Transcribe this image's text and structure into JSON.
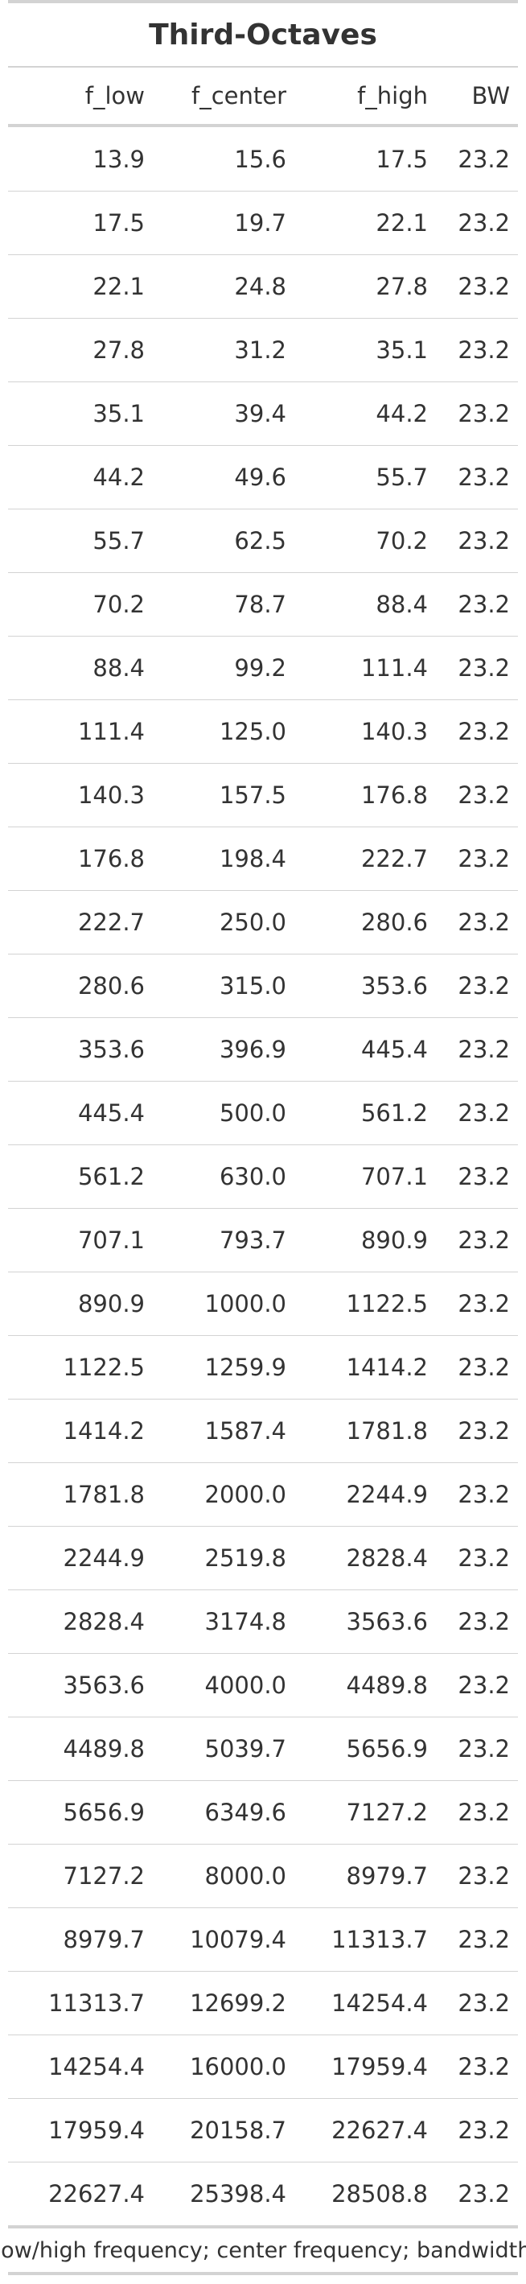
{
  "table": {
    "title": "Third-Octaves",
    "columns": [
      "f_low",
      "f_center",
      "f_high",
      "BW"
    ],
    "rows": [
      [
        "13.9",
        "15.6",
        "17.5",
        "23.2"
      ],
      [
        "17.5",
        "19.7",
        "22.1",
        "23.2"
      ],
      [
        "22.1",
        "24.8",
        "27.8",
        "23.2"
      ],
      [
        "27.8",
        "31.2",
        "35.1",
        "23.2"
      ],
      [
        "35.1",
        "39.4",
        "44.2",
        "23.2"
      ],
      [
        "44.2",
        "49.6",
        "55.7",
        "23.2"
      ],
      [
        "55.7",
        "62.5",
        "70.2",
        "23.2"
      ],
      [
        "70.2",
        "78.7",
        "88.4",
        "23.2"
      ],
      [
        "88.4",
        "99.2",
        "111.4",
        "23.2"
      ],
      [
        "111.4",
        "125.0",
        "140.3",
        "23.2"
      ],
      [
        "140.3",
        "157.5",
        "176.8",
        "23.2"
      ],
      [
        "176.8",
        "198.4",
        "222.7",
        "23.2"
      ],
      [
        "222.7",
        "250.0",
        "280.6",
        "23.2"
      ],
      [
        "280.6",
        "315.0",
        "353.6",
        "23.2"
      ],
      [
        "353.6",
        "396.9",
        "445.4",
        "23.2"
      ],
      [
        "445.4",
        "500.0",
        "561.2",
        "23.2"
      ],
      [
        "561.2",
        "630.0",
        "707.1",
        "23.2"
      ],
      [
        "707.1",
        "793.7",
        "890.9",
        "23.2"
      ],
      [
        "890.9",
        "1000.0",
        "1122.5",
        "23.2"
      ],
      [
        "1122.5",
        "1259.9",
        "1414.2",
        "23.2"
      ],
      [
        "1414.2",
        "1587.4",
        "1781.8",
        "23.2"
      ],
      [
        "1781.8",
        "2000.0",
        "2244.9",
        "23.2"
      ],
      [
        "2244.9",
        "2519.8",
        "2828.4",
        "23.2"
      ],
      [
        "2828.4",
        "3174.8",
        "3563.6",
        "23.2"
      ],
      [
        "3563.6",
        "4000.0",
        "4489.8",
        "23.2"
      ],
      [
        "4489.8",
        "5039.7",
        "5656.9",
        "23.2"
      ],
      [
        "5656.9",
        "6349.6",
        "7127.2",
        "23.2"
      ],
      [
        "7127.2",
        "8000.0",
        "8979.7",
        "23.2"
      ],
      [
        "8979.7",
        "10079.4",
        "11313.7",
        "23.2"
      ],
      [
        "11313.7",
        "12699.2",
        "14254.4",
        "23.2"
      ],
      [
        "14254.4",
        "16000.0",
        "17959.4",
        "23.2"
      ],
      [
        "17959.4",
        "20158.7",
        "22627.4",
        "23.2"
      ],
      [
        "22627.4",
        "25398.4",
        "28508.8",
        "23.2"
      ]
    ],
    "footnote": "low/high frequency; center frequency; bandwidth"
  }
}
